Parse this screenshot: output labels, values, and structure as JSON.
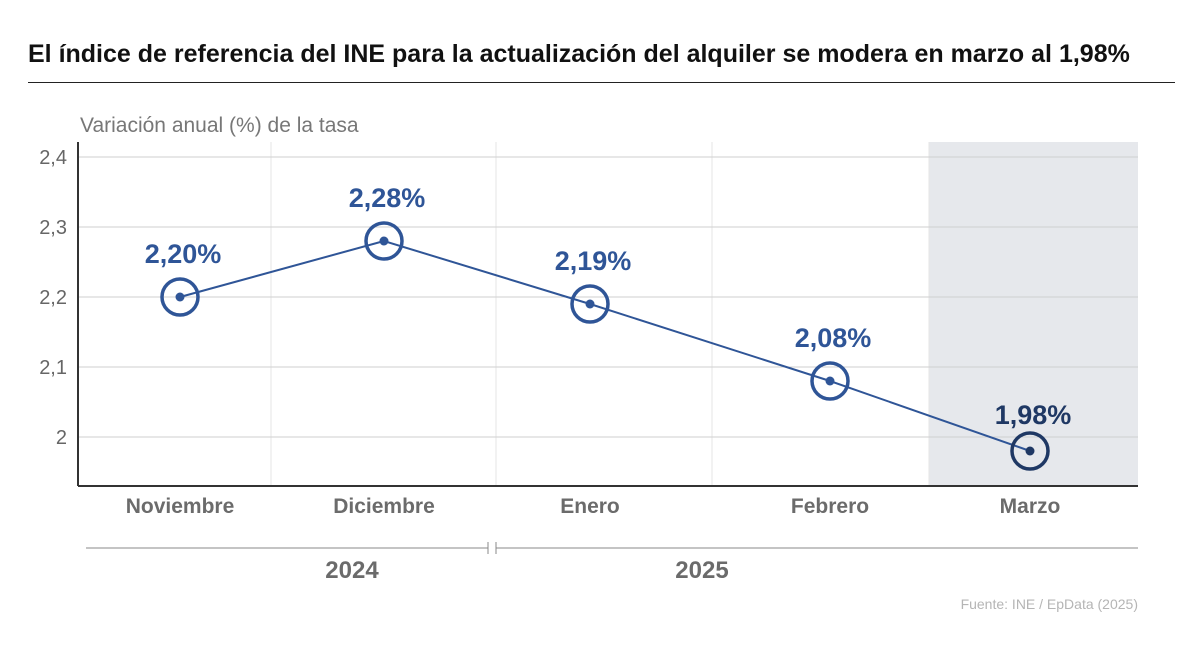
{
  "title": "El índice de referencia del INE para la actualización del alquiler se modera en marzo al 1,98%",
  "source": "Fuente: INE / EpData (2025)",
  "colors": {
    "line": "#2f5597",
    "label": "#2f5597",
    "last_point": "#1f3864",
    "highlight_band": "#e6e8ec",
    "grid": "#cfcfcf",
    "axis_text": "#666666"
  },
  "chart_data": {
    "type": "line",
    "title": "El índice de referencia del INE para la actualización del alquiler se modera en marzo al 1,98%",
    "ylabel": "Variación anual (%) de la tasa",
    "xlabel": "",
    "categories": [
      "Noviembre",
      "Diciembre",
      "Enero",
      "Febrero",
      "Marzo"
    ],
    "values": [
      2.2,
      2.28,
      2.19,
      2.08,
      1.98
    ],
    "data_labels": [
      "2,20%",
      "2,28%",
      "2,19%",
      "2,08%",
      "1,98%"
    ],
    "ylim": [
      1.92,
      2.42
    ],
    "y_ticks": [
      2,
      2.1,
      2.2,
      2.3,
      2.4
    ],
    "y_tick_labels": [
      "2",
      "2,1",
      "2,2",
      "2,3",
      "2,4"
    ],
    "year_groups": [
      {
        "label": "2024",
        "categories": [
          "Noviembre",
          "Diciembre"
        ]
      },
      {
        "label": "2025",
        "categories": [
          "Enero",
          "Febrero",
          "Marzo"
        ]
      }
    ],
    "highlighted_category": "Marzo",
    "grid": true,
    "legend": "none"
  }
}
